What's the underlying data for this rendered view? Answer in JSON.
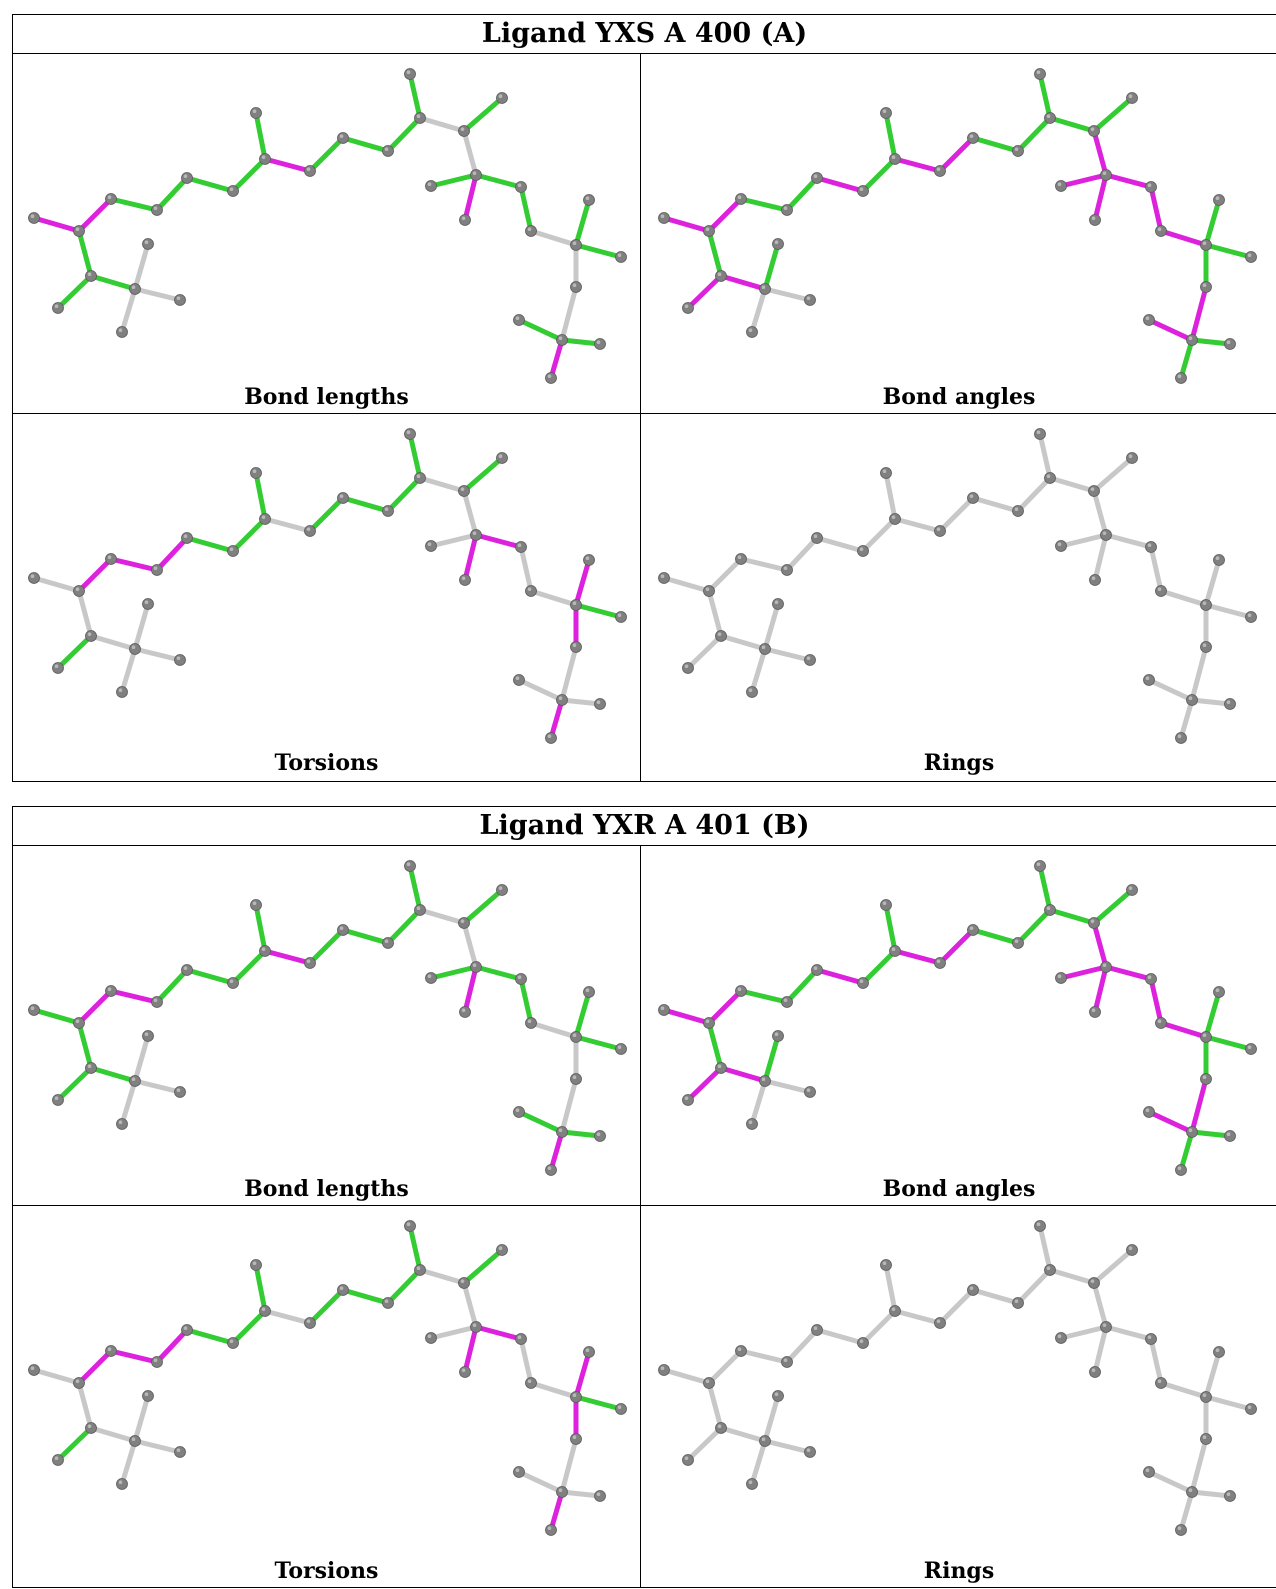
{
  "figure": {
    "blocks": [
      {
        "title": "Ligand YXS A 400 (A)",
        "panels": [
          {
            "label": "Bond lengths",
            "bond_colors": [
              "m",
              "m",
              "g",
              "g",
              "g",
              "g",
              "g",
              "m",
              "g",
              "g",
              "g",
              "g",
              "w",
              "g",
              "w",
              "g",
              "m",
              "g",
              "g",
              "w",
              "g",
              "g",
              "w",
              "w",
              "g",
              "m",
              "g",
              "g",
              "g",
              "g",
              "w"
            ]
          },
          {
            "label": "Bond angles",
            "bond_colors": [
              "m",
              "m",
              "g",
              "g",
              "m",
              "g",
              "g",
              "m",
              "m",
              "g",
              "g",
              "g",
              "g",
              "g",
              "m",
              "m",
              "m",
              "m",
              "m",
              "m",
              "g",
              "g",
              "g",
              "m",
              "m",
              "g",
              "g",
              "g",
              "m",
              "m",
              "g"
            ]
          },
          {
            "label": "Torsions",
            "bond_colors": [
              "w",
              "m",
              "m",
              "m",
              "g",
              "g",
              "g",
              "w",
              "g",
              "g",
              "g",
              "g",
              "w",
              "g",
              "w",
              "w",
              "m",
              "m",
              "w",
              "w",
              "m",
              "g",
              "m",
              "w",
              "w",
              "m",
              "w",
              "w",
              "g",
              "w",
              "w"
            ]
          },
          {
            "label": "Rings",
            "bond_colors": [
              "w",
              "w",
              "w",
              "w",
              "w",
              "w",
              "w",
              "w",
              "w",
              "w",
              "w",
              "w",
              "w",
              "w",
              "w",
              "w",
              "w",
              "w",
              "w",
              "w",
              "w",
              "w",
              "w",
              "w",
              "w",
              "w",
              "w",
              "w",
              "w",
              "w",
              "w"
            ]
          }
        ]
      },
      {
        "title": "Ligand YXR A 401 (B)",
        "panels": [
          {
            "label": "Bond lengths",
            "bond_colors": [
              "g",
              "m",
              "m",
              "g",
              "g",
              "g",
              "g",
              "m",
              "g",
              "g",
              "g",
              "g",
              "w",
              "g",
              "w",
              "g",
              "m",
              "g",
              "g",
              "w",
              "g",
              "g",
              "w",
              "w",
              "g",
              "m",
              "g",
              "g",
              "g",
              "g",
              "w"
            ]
          },
          {
            "label": "Bond angles",
            "bond_colors": [
              "m",
              "m",
              "g",
              "g",
              "m",
              "g",
              "g",
              "m",
              "m",
              "g",
              "g",
              "g",
              "g",
              "g",
              "m",
              "m",
              "m",
              "m",
              "m",
              "m",
              "g",
              "g",
              "g",
              "m",
              "m",
              "g",
              "g",
              "g",
              "m",
              "m",
              "g"
            ]
          },
          {
            "label": "Torsions",
            "bond_colors": [
              "w",
              "m",
              "m",
              "m",
              "g",
              "g",
              "g",
              "w",
              "g",
              "g",
              "g",
              "g",
              "w",
              "g",
              "w",
              "w",
              "m",
              "m",
              "w",
              "w",
              "m",
              "g",
              "m",
              "w",
              "w",
              "m",
              "w",
              "w",
              "g",
              "w",
              "w"
            ]
          },
          {
            "label": "Rings",
            "bond_colors": [
              "w",
              "w",
              "w",
              "w",
              "w",
              "w",
              "w",
              "w",
              "w",
              "w",
              "w",
              "w",
              "w",
              "w",
              "w",
              "w",
              "w",
              "w",
              "w",
              "w",
              "w",
              "w",
              "w",
              "w",
              "w",
              "w",
              "w",
              "w",
              "w",
              "w",
              "w"
            ]
          }
        ]
      }
    ],
    "colors": {
      "g": "#33cc33",
      "m": "#dd22dd",
      "w": "#c8c8c8",
      "atom": "#808080",
      "atom_highlight": "#b8b8b8"
    }
  }
}
